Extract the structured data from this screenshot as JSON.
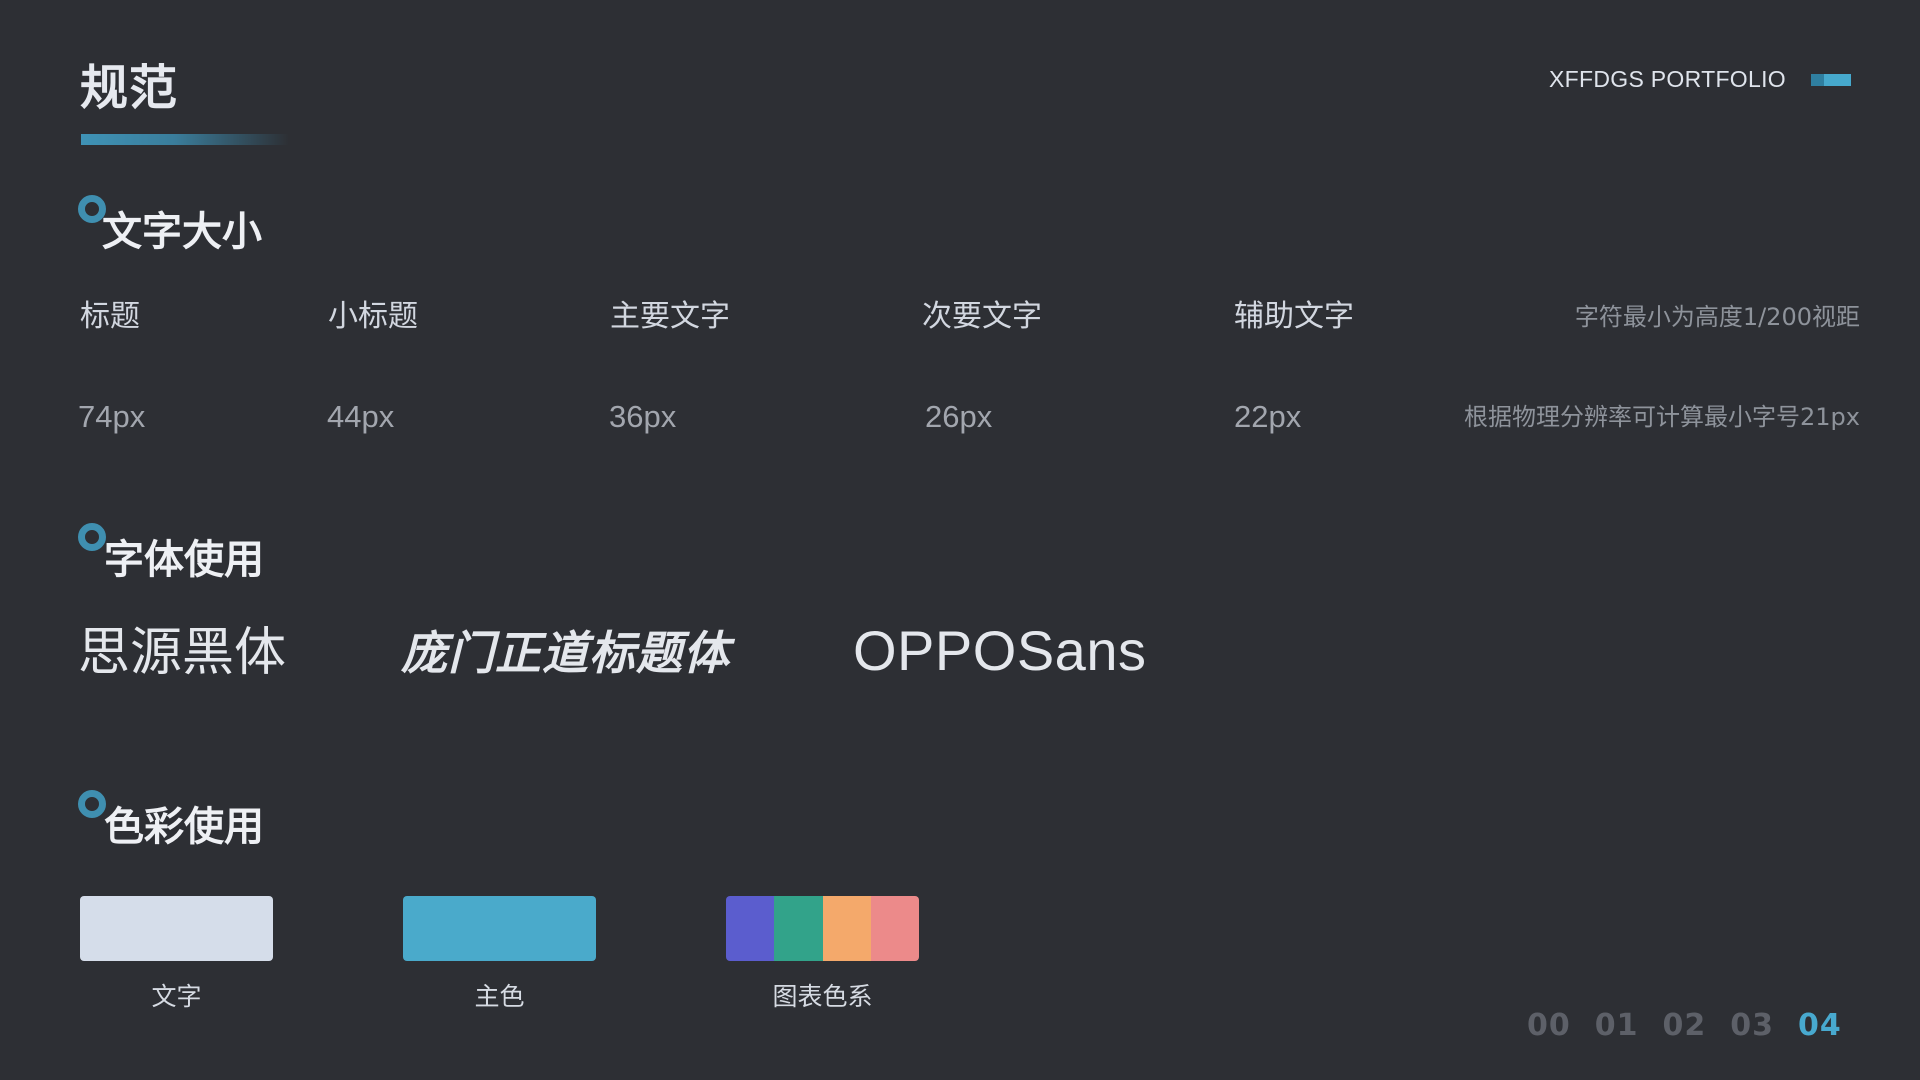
{
  "header": {
    "title": "规范",
    "brand": "XFFDGS PORTFOLIO"
  },
  "sections": {
    "font_size": {
      "title": "文字大小",
      "columns": [
        {
          "label": "标题",
          "value": "74px"
        },
        {
          "label": "小标题",
          "value": "44px"
        },
        {
          "label": "主要文字",
          "value": "36px"
        },
        {
          "label": "次要文字",
          "value": "26px"
        },
        {
          "label": "辅助文字",
          "value": "22px"
        }
      ],
      "note_top": "字符最小为高度1/200视距",
      "note_bottom": "根据物理分辨率可计算最小字号21px"
    },
    "font_usage": {
      "title": "字体使用",
      "fonts": [
        "思源黑体",
        "庞门正道标题体",
        "OPPOSans"
      ]
    },
    "color_usage": {
      "title": "色彩使用",
      "swatches": [
        {
          "label": "文字",
          "colors": [
            "#d5ddea"
          ]
        },
        {
          "label": "主色",
          "colors": [
            "#4aaacb"
          ]
        },
        {
          "label": "图表色系",
          "colors": [
            "#5b5dce",
            "#32a38a",
            "#f4a96b",
            "#ec8a8a"
          ]
        }
      ]
    }
  },
  "pager": {
    "pages": [
      "00",
      "01",
      "02",
      "03",
      "04"
    ],
    "active": "04"
  },
  "theme": {
    "background": "#2d2f34",
    "accent": "#4aaacb"
  }
}
